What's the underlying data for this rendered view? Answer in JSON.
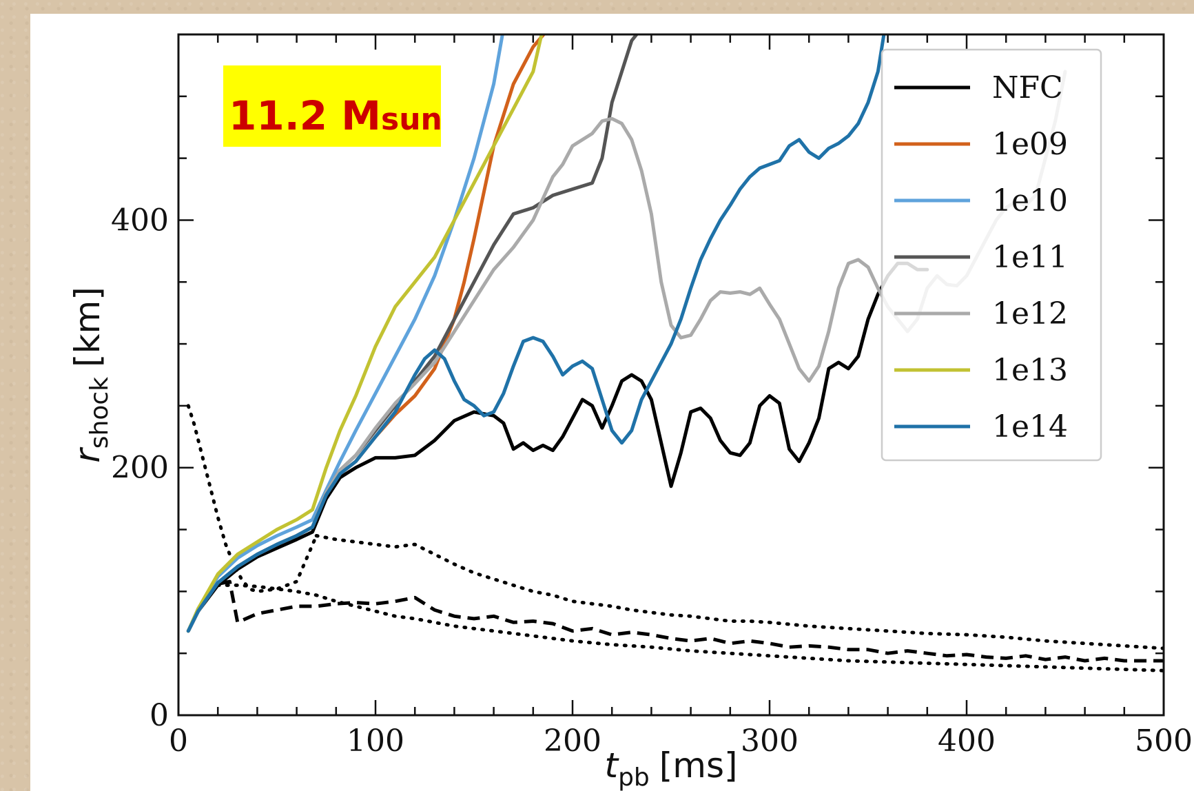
{
  "chart_data": {
    "type": "line",
    "xlabel": {
      "symbol": "t",
      "subscript": "pb",
      "unit": "[ms]"
    },
    "ylabel": {
      "symbol": "r",
      "subscript": "shock",
      "unit": "[km]"
    },
    "xlim": [
      0,
      500
    ],
    "ylim": [
      0,
      550
    ],
    "xticks": [
      0,
      100,
      200,
      300,
      400,
      500
    ],
    "yticks": [
      0,
      200,
      400
    ],
    "grid": false,
    "legend_position": "top-right",
    "annotation": {
      "text_main": "11.2 M",
      "text_sub": "sun",
      "text_color": "#cc0000",
      "bg_color": "#ffff00"
    },
    "series": [
      {
        "name": "NFC",
        "color": "#000000",
        "style": "solid",
        "x": [
          5,
          10,
          20,
          30,
          40,
          50,
          60,
          68,
          75,
          82,
          90,
          100,
          110,
          120,
          130,
          140,
          150,
          160,
          165,
          170,
          175,
          180,
          185,
          190,
          195,
          200,
          205,
          210,
          215,
          220,
          225,
          230,
          235,
          240,
          245,
          250,
          255,
          260,
          265,
          270,
          275,
          280,
          285,
          290,
          295,
          300,
          305,
          310,
          315,
          320,
          325,
          330,
          335,
          340,
          345,
          350,
          355,
          360,
          365,
          370,
          375,
          380
        ],
        "y": [
          68,
          84,
          105,
          118,
          128,
          135,
          142,
          148,
          175,
          192,
          200,
          208,
          208,
          210,
          222,
          238,
          245,
          242,
          236,
          215,
          220,
          214,
          218,
          214,
          225,
          240,
          255,
          250,
          232,
          250,
          270,
          275,
          270,
          255,
          220,
          185,
          212,
          245,
          248,
          240,
          222,
          212,
          210,
          220,
          250,
          258,
          252,
          215,
          205,
          220,
          240,
          280,
          285,
          280,
          290,
          320,
          340,
          355,
          365,
          365,
          360,
          360
        ]
      },
      {
        "name": "1e09",
        "color": "#d2611b",
        "style": "solid",
        "x": [
          5,
          10,
          20,
          30,
          40,
          50,
          60,
          68,
          75,
          82,
          90,
          100,
          110,
          120,
          130,
          140,
          145,
          150,
          160,
          170,
          180,
          188
        ],
        "y": [
          68,
          84,
          107,
          120,
          130,
          138,
          145,
          152,
          178,
          195,
          205,
          225,
          243,
          258,
          280,
          320,
          350,
          385,
          460,
          510,
          540,
          555
        ]
      },
      {
        "name": "1e10",
        "color": "#5fa3dc",
        "style": "solid",
        "x": [
          5,
          10,
          20,
          30,
          40,
          50,
          60,
          68,
          75,
          82,
          90,
          100,
          110,
          120,
          130,
          140,
          150,
          160,
          165
        ],
        "y": [
          68,
          86,
          112,
          127,
          137,
          145,
          152,
          158,
          182,
          205,
          230,
          260,
          290,
          320,
          355,
          400,
          450,
          510,
          555
        ]
      },
      {
        "name": "1e11",
        "color": "#555555",
        "style": "solid",
        "x": [
          5,
          10,
          20,
          30,
          40,
          50,
          60,
          68,
          75,
          82,
          90,
          100,
          110,
          120,
          130,
          140,
          150,
          160,
          170,
          180,
          190,
          200,
          210,
          215,
          220,
          225,
          230,
          235,
          240
        ],
        "y": [
          68,
          84,
          107,
          120,
          130,
          138,
          145,
          152,
          180,
          198,
          210,
          230,
          250,
          270,
          290,
          320,
          350,
          380,
          405,
          410,
          420,
          425,
          430,
          450,
          495,
          520,
          545,
          555,
          560
        ]
      },
      {
        "name": "1e12",
        "color": "#aaaaaa",
        "style": "solid",
        "x": [
          5,
          10,
          20,
          30,
          40,
          50,
          60,
          68,
          75,
          82,
          90,
          100,
          110,
          120,
          130,
          140,
          150,
          160,
          170,
          180,
          190,
          195,
          200,
          210,
          215,
          220,
          225,
          230,
          235,
          240,
          245,
          250,
          255,
          260,
          265,
          270,
          275,
          280,
          285,
          290,
          295,
          300,
          305,
          310,
          315,
          320,
          325,
          330,
          335,
          340,
          345,
          350,
          355,
          360,
          365,
          370,
          375,
          380,
          385,
          390,
          395,
          400,
          405,
          410,
          415,
          420,
          425,
          430,
          435,
          440,
          445,
          450
        ],
        "y": [
          68,
          84,
          107,
          120,
          130,
          138,
          145,
          152,
          180,
          198,
          210,
          232,
          252,
          268,
          285,
          310,
          335,
          360,
          378,
          400,
          435,
          445,
          460,
          470,
          480,
          482,
          478,
          465,
          440,
          405,
          350,
          315,
          305,
          307,
          320,
          335,
          342,
          341,
          342,
          340,
          345,
          332,
          320,
          300,
          280,
          270,
          282,
          310,
          345,
          365,
          368,
          362,
          345,
          330,
          320,
          310,
          320,
          345,
          355,
          348,
          347,
          355,
          370,
          385,
          400,
          410,
          415,
          412,
          420,
          450,
          480,
          520
        ]
      },
      {
        "name": "1e13",
        "color": "#c2c232",
        "style": "solid",
        "x": [
          5,
          10,
          20,
          30,
          40,
          50,
          60,
          68,
          75,
          82,
          90,
          100,
          110,
          120,
          130,
          140,
          150,
          160,
          170,
          180,
          185
        ],
        "y": [
          68,
          86,
          114,
          130,
          140,
          150,
          158,
          166,
          200,
          230,
          258,
          298,
          330,
          350,
          370,
          400,
          430,
          460,
          490,
          520,
          555
        ]
      },
      {
        "name": "1e14",
        "color": "#1f72a8",
        "style": "solid",
        "x": [
          5,
          10,
          20,
          30,
          40,
          50,
          60,
          68,
          75,
          82,
          90,
          100,
          110,
          120,
          125,
          130,
          135,
          140,
          145,
          150,
          155,
          160,
          165,
          170,
          175,
          180,
          185,
          190,
          195,
          200,
          205,
          210,
          215,
          220,
          225,
          230,
          235,
          240,
          245,
          250,
          255,
          260,
          265,
          270,
          275,
          280,
          285,
          290,
          295,
          300,
          305,
          310,
          315,
          320,
          325,
          330,
          335,
          340,
          345,
          350,
          355,
          358
        ],
        "y": [
          68,
          84,
          107,
          120,
          130,
          138,
          145,
          152,
          178,
          195,
          205,
          225,
          245,
          275,
          288,
          295,
          288,
          270,
          255,
          250,
          242,
          245,
          260,
          282,
          302,
          305,
          302,
          290,
          275,
          282,
          286,
          280,
          255,
          230,
          220,
          230,
          255,
          270,
          285,
          300,
          320,
          345,
          368,
          385,
          400,
          412,
          425,
          435,
          442,
          445,
          448,
          460,
          465,
          455,
          450,
          458,
          462,
          468,
          478,
          495,
          520,
          550
        ]
      },
      {
        "name": "",
        "color": "#000000",
        "style": "dashed",
        "x": [
          5,
          10,
          20,
          26,
          30,
          40,
          50,
          60,
          70,
          80,
          90,
          100,
          110,
          120,
          130,
          140,
          150,
          160,
          170,
          180,
          190,
          200,
          210,
          220,
          230,
          240,
          250,
          260,
          270,
          280,
          290,
          300,
          310,
          320,
          330,
          340,
          350,
          360,
          370,
          380,
          390,
          400,
          410,
          420,
          430,
          440,
          450,
          460,
          470,
          480,
          490,
          500
        ],
        "y": [
          68,
          84,
          106,
          108,
          75,
          82,
          85,
          88,
          88,
          90,
          91,
          90,
          92,
          95,
          85,
          80,
          78,
          80,
          75,
          76,
          74,
          68,
          70,
          65,
          67,
          65,
          62,
          60,
          62,
          58,
          60,
          58,
          55,
          56,
          55,
          53,
          53,
          50,
          52,
          50,
          48,
          49,
          47,
          46,
          48,
          45,
          47,
          44,
          46,
          44,
          44,
          44
        ]
      },
      {
        "name": "",
        "color": "#000000",
        "style": "dotted",
        "x": [
          5,
          8,
          12,
          16,
          20,
          24,
          28,
          32,
          36,
          40,
          50,
          60,
          70
        ],
        "y": [
          250,
          235,
          210,
          185,
          160,
          138,
          122,
          110,
          102,
          100,
          102,
          108,
          145
        ]
      },
      {
        "name": "",
        "color": "#000000",
        "style": "dotted",
        "x": [
          70,
          80,
          90,
          100,
          110,
          120,
          130,
          140,
          150,
          160,
          170,
          180,
          190,
          200,
          210,
          220,
          230,
          240,
          250,
          260,
          270,
          280,
          290,
          300,
          320,
          340,
          360,
          380,
          400,
          420,
          440,
          460,
          480,
          500
        ],
        "y": [
          145,
          142,
          140,
          138,
          136,
          138,
          130,
          122,
          115,
          110,
          105,
          100,
          97,
          92,
          90,
          88,
          85,
          83,
          81,
          80,
          78,
          76,
          76,
          75,
          72,
          70,
          68,
          66,
          65,
          63,
          60,
          58,
          56,
          54
        ]
      },
      {
        "name": "",
        "color": "#000000",
        "style": "dotted",
        "x": [
          20,
          30,
          40,
          50,
          60,
          70,
          80,
          90,
          100,
          110,
          120,
          140,
          160,
          180,
          200,
          220,
          240,
          260,
          280,
          300,
          320,
          340,
          360,
          380,
          400,
          420,
          440,
          460,
          480,
          500
        ],
        "y": [
          105,
          105,
          104,
          102,
          100,
          97,
          92,
          88,
          84,
          80,
          78,
          72,
          68,
          64,
          60,
          57,
          55,
          52,
          50,
          48,
          46,
          44,
          43,
          42,
          41,
          40,
          39,
          38,
          37,
          36
        ]
      }
    ]
  }
}
